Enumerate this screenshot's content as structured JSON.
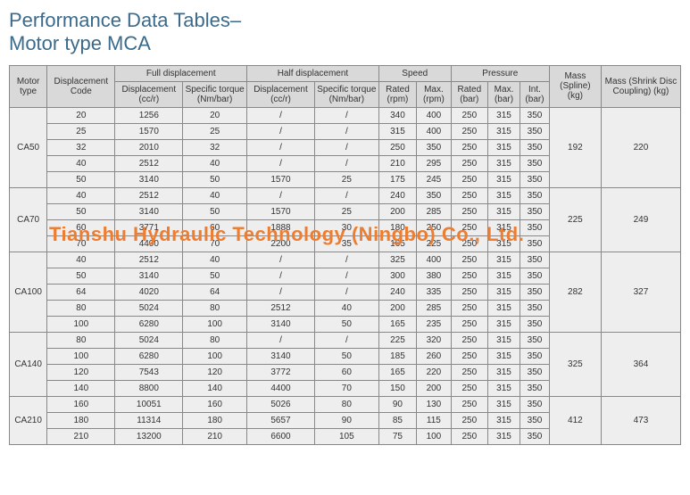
{
  "title_line1": "Performance Data Tables–",
  "title_line2": "Motor type MCA",
  "watermark": "Tianshu Hydraulic Technology (Ningbo) Co., Ltd.",
  "headers": {
    "motor_type": "Motor type",
    "disp_code": "Displacement Code",
    "full_disp": "Full displacement",
    "half_disp": "Half displacement",
    "speed": "Speed",
    "pressure": "Pressure",
    "mass_spline": "Mass (Spline) (kg)",
    "mass_shrink": "Mass (Shrink Disc Coupling) (kg)",
    "disp_ccr": "Displacement (cc/r)",
    "spec_torque": "Specific torque (Nm/bar)",
    "rated_rpm": "Rated (rpm)",
    "max_rpm": "Max. (rpm)",
    "rated_bar": "Rated (bar)",
    "max_bar": "Max. (bar)",
    "int_bar": "Int. (bar)"
  },
  "groups": [
    {
      "motor": "CA50",
      "mass_spline": "192",
      "mass_shrink": "220",
      "rows": [
        {
          "c": [
            "20",
            "1256",
            "20",
            "/",
            "/",
            "340",
            "400",
            "250",
            "315",
            "350"
          ]
        },
        {
          "c": [
            "25",
            "1570",
            "25",
            "/",
            "/",
            "315",
            "400",
            "250",
            "315",
            "350"
          ]
        },
        {
          "c": [
            "32",
            "2010",
            "32",
            "/",
            "/",
            "250",
            "350",
            "250",
            "315",
            "350"
          ]
        },
        {
          "c": [
            "40",
            "2512",
            "40",
            "/",
            "/",
            "210",
            "295",
            "250",
            "315",
            "350"
          ]
        },
        {
          "c": [
            "50",
            "3140",
            "50",
            "1570",
            "25",
            "175",
            "245",
            "250",
            "315",
            "350"
          ]
        }
      ]
    },
    {
      "motor": "CA70",
      "mass_spline": "225",
      "mass_shrink": "249",
      "rows": [
        {
          "c": [
            "40",
            "2512",
            "40",
            "/",
            "/",
            "240",
            "350",
            "250",
            "315",
            "350"
          ]
        },
        {
          "c": [
            "50",
            "3140",
            "50",
            "1570",
            "25",
            "200",
            "285",
            "250",
            "315",
            "350"
          ]
        },
        {
          "c": [
            "60",
            "3771",
            "60",
            "1888",
            "30",
            "180",
            "250",
            "250",
            "315",
            "350"
          ]
        },
        {
          "c": [
            "70",
            "4400",
            "70",
            "2200",
            "35",
            "165",
            "225",
            "250",
            "315",
            "350"
          ]
        }
      ]
    },
    {
      "motor": "CA100",
      "mass_spline": "282",
      "mass_shrink": "327",
      "rows": [
        {
          "c": [
            "40",
            "2512",
            "40",
            "/",
            "/",
            "325",
            "400",
            "250",
            "315",
            "350"
          ]
        },
        {
          "c": [
            "50",
            "3140",
            "50",
            "/",
            "/",
            "300",
            "380",
            "250",
            "315",
            "350"
          ]
        },
        {
          "c": [
            "64",
            "4020",
            "64",
            "/",
            "/",
            "240",
            "335",
            "250",
            "315",
            "350"
          ]
        },
        {
          "c": [
            "80",
            "5024",
            "80",
            "2512",
            "40",
            "200",
            "285",
            "250",
            "315",
            "350"
          ]
        },
        {
          "c": [
            "100",
            "6280",
            "100",
            "3140",
            "50",
            "165",
            "235",
            "250",
            "315",
            "350"
          ]
        }
      ]
    },
    {
      "motor": "CA140",
      "mass_spline": "325",
      "mass_shrink": "364",
      "rows": [
        {
          "c": [
            "80",
            "5024",
            "80",
            "/",
            "/",
            "225",
            "320",
            "250",
            "315",
            "350"
          ]
        },
        {
          "c": [
            "100",
            "6280",
            "100",
            "3140",
            "50",
            "185",
            "260",
            "250",
            "315",
            "350"
          ]
        },
        {
          "c": [
            "120",
            "7543",
            "120",
            "3772",
            "60",
            "165",
            "220",
            "250",
            "315",
            "350"
          ]
        },
        {
          "c": [
            "140",
            "8800",
            "140",
            "4400",
            "70",
            "150",
            "200",
            "250",
            "315",
            "350"
          ]
        }
      ]
    },
    {
      "motor": "CA210",
      "mass_spline": "412",
      "mass_shrink": "473",
      "rows": [
        {
          "c": [
            "160",
            "10051",
            "160",
            "5026",
            "80",
            "90",
            "130",
            "250",
            "315",
            "350"
          ]
        },
        {
          "c": [
            "180",
            "11314",
            "180",
            "5657",
            "90",
            "85",
            "115",
            "250",
            "315",
            "350"
          ]
        },
        {
          "c": [
            "210",
            "13200",
            "210",
            "6600",
            "105",
            "75",
            "100",
            "250",
            "315",
            "350"
          ]
        }
      ]
    }
  ],
  "colors": {
    "title": "#3a6b8c",
    "header_bg": "#d9d9d9",
    "cell_bg": "#eeeeee",
    "border": "#888888",
    "watermark": "#ed7d31"
  }
}
